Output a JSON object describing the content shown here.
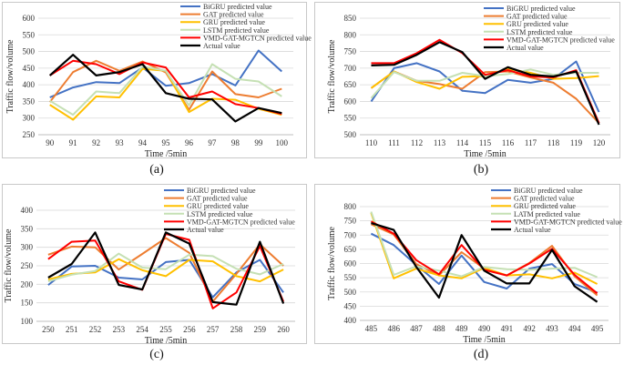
{
  "series_styles": [
    {
      "color": "#4472C4",
      "width": 2
    },
    {
      "color": "#ED7D31",
      "width": 2
    },
    {
      "color": "#FFC000",
      "width": 2
    },
    {
      "color": "#C5E0B4",
      "width": 2
    },
    {
      "color": "#FF0000",
      "width": 2
    },
    {
      "color": "#000000",
      "width": 2.2
    }
  ],
  "chart_data": [
    {
      "type": "line",
      "caption": "(a)",
      "xlabel": "Time /5min",
      "ylabel": "Traffic flow/volume",
      "ylim": [
        250,
        600
      ],
      "yticks": [
        250,
        300,
        350,
        400,
        450,
        500,
        550,
        600
      ],
      "categories": [
        "90",
        "91",
        "92",
        "93",
        "94",
        "95",
        "96",
        "97",
        "98",
        "99",
        "100"
      ],
      "series": [
        {
          "name": "BiGRU predicted value",
          "values": [
            362,
            392,
            408,
            405,
            452,
            397,
            405,
            432,
            398,
            503,
            440
          ]
        },
        {
          "name": "GAT predicted value",
          "values": [
            348,
            438,
            472,
            442,
            470,
            437,
            325,
            440,
            372,
            362,
            388
          ]
        },
        {
          "name": "GRU predicted value",
          "values": [
            340,
            295,
            365,
            362,
            448,
            442,
            318,
            358,
            355,
            328,
            310
          ]
        },
        {
          "name": "LSTM predicted value",
          "values": [
            352,
            310,
            380,
            375,
            455,
            442,
            338,
            462,
            418,
            410,
            365
          ]
        },
        {
          "name": "VMD-GAT-MGTCN predicted value",
          "values": [
            428,
            472,
            462,
            432,
            467,
            452,
            362,
            380,
            342,
            330,
            312
          ]
        },
        {
          "name": "Actual value",
          "values": [
            428,
            490,
            428,
            438,
            462,
            375,
            358,
            356,
            290,
            330,
            315
          ]
        }
      ]
    },
    {
      "type": "line",
      "caption": "(b)",
      "xlabel": "Time /5min",
      "ylabel": "Traffic flow/volume",
      "ylim": [
        500,
        850
      ],
      "yticks": [
        500,
        550,
        600,
        650,
        700,
        750,
        800,
        850
      ],
      "categories": [
        "110",
        "111",
        "112",
        "113",
        "114",
        "115",
        "116",
        "117",
        "118",
        "119",
        "120"
      ],
      "series": [
        {
          "name": "BiGRU predicted value",
          "values": [
            600,
            700,
            715,
            690,
            632,
            625,
            665,
            656,
            668,
            720,
            568
          ]
        },
        {
          "name": "GAT predicted value",
          "values": [
            640,
            690,
            662,
            652,
            638,
            688,
            690,
            672,
            656,
            608,
            535
          ]
        },
        {
          "name": "GRU predicted value",
          "values": [
            640,
            690,
            658,
            638,
            674,
            676,
            698,
            686,
            668,
            670,
            676
          ]
        },
        {
          "name": "LSTM predicted value",
          "values": [
            610,
            688,
            662,
            662,
            686,
            676,
            682,
            696,
            680,
            686,
            686
          ]
        },
        {
          "name": "VMD-GAT-MGTCN predicted value",
          "values": [
            715,
            715,
            745,
            785,
            745,
            680,
            694,
            675,
            672,
            694,
            535
          ]
        },
        {
          "name": "Actual value",
          "values": [
            708,
            710,
            740,
            778,
            748,
            668,
            703,
            680,
            675,
            690,
            530
          ]
        }
      ]
    },
    {
      "type": "line",
      "caption": "(c)",
      "xlabel": "Time /5min",
      "ylabel": "Traffic flow/volume",
      "ylim": [
        100,
        400
      ],
      "yticks": [
        100,
        150,
        200,
        250,
        300,
        350,
        400
      ],
      "categories": [
        "250",
        "251",
        "252",
        "253",
        "254",
        "255",
        "256",
        "257",
        "258",
        "259",
        "260"
      ],
      "series": [
        {
          "name": "BiGRU predicted value",
          "values": [
            198,
            248,
            250,
            218,
            213,
            260,
            266,
            165,
            232,
            266,
            178
          ]
        },
        {
          "name": "GAT predicted value",
          "values": [
            280,
            302,
            300,
            240,
            282,
            325,
            285,
            153,
            228,
            308,
            250
          ]
        },
        {
          "name": "GRU predicted value",
          "values": [
            213,
            228,
            232,
            268,
            238,
            222,
            266,
            262,
            222,
            208,
            240
          ]
        },
        {
          "name": "LSTM predicted value",
          "values": [
            208,
            226,
            236,
            283,
            245,
            241,
            280,
            276,
            242,
            227,
            255
          ]
        },
        {
          "name": "VMD-GAT-MGTCN predicted value",
          "values": [
            268,
            315,
            318,
            208,
            185,
            336,
            320,
            135,
            178,
            303,
            153
          ]
        },
        {
          "name": "Actual value",
          "values": [
            218,
            255,
            340,
            198,
            186,
            340,
            310,
            152,
            145,
            315,
            148
          ]
        }
      ]
    },
    {
      "type": "line",
      "caption": "(d)",
      "xlabel": "Time /5min",
      "ylabel": "Traffic flow/volume",
      "ylim": [
        400,
        800
      ],
      "yticks": [
        400,
        450,
        500,
        550,
        600,
        650,
        700,
        750,
        800
      ],
      "categories": [
        "485",
        "486",
        "487",
        "488",
        "489",
        "490",
        "491",
        "492",
        "493",
        "494",
        "495"
      ],
      "series": [
        {
          "name": "BiGRU predicted value",
          "values": [
            705,
            665,
            595,
            528,
            628,
            535,
            512,
            582,
            598,
            528,
            498
          ]
        },
        {
          "name": "GAT predicted value",
          "values": [
            738,
            702,
            598,
            558,
            640,
            582,
            558,
            602,
            662,
            555,
            488
          ]
        },
        {
          "name": "GRU predicted value",
          "values": [
            778,
            548,
            582,
            558,
            548,
            585,
            558,
            562,
            548,
            568,
            528
          ]
        },
        {
          "name": "LATM predicted value",
          "values": [
            782,
            560,
            590,
            575,
            555,
            588,
            580,
            578,
            582,
            585,
            552
          ]
        },
        {
          "name": "VMD-GAT-MGTCN predicted value",
          "values": [
            748,
            705,
            612,
            562,
            665,
            578,
            558,
            600,
            652,
            560,
            495
          ]
        },
        {
          "name": "Actual value",
          "values": [
            742,
            718,
            588,
            480,
            700,
            575,
            530,
            530,
            648,
            520,
            465
          ]
        }
      ]
    }
  ]
}
